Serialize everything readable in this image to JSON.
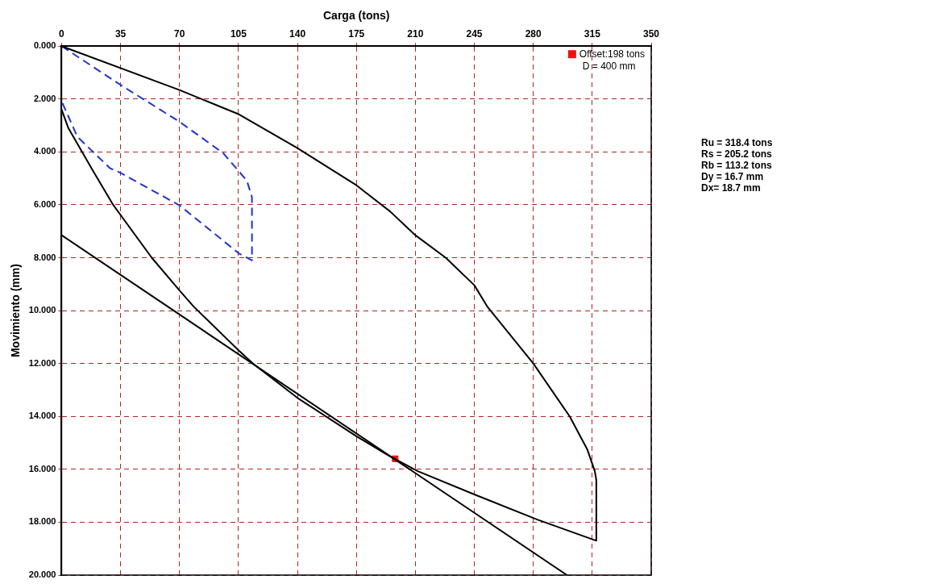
{
  "chart_data": {
    "type": "line",
    "xlabel": "Carga (tons)",
    "ylabel": "Movimiento (mm)",
    "xlim": [
      0,
      350
    ],
    "xticks": [
      0,
      35,
      70,
      105,
      140,
      175,
      210,
      245,
      280,
      315,
      350
    ],
    "ylim": [
      20,
      0
    ],
    "yticks": [
      {
        "value": 0,
        "label": "0.000"
      },
      {
        "value": 2,
        "label": "2.000"
      },
      {
        "value": 4,
        "label": "4.000"
      },
      {
        "value": 6,
        "label": "6.000"
      },
      {
        "value": 8,
        "label": "8.000"
      },
      {
        "value": 10,
        "label": "10.000"
      },
      {
        "value": 12,
        "label": "12.000"
      },
      {
        "value": 14,
        "label": "14.000"
      },
      {
        "value": 16,
        "label": "16.000"
      },
      {
        "value": 18,
        "label": "18.000"
      },
      {
        "value": 20,
        "label": "20.000"
      }
    ],
    "grid": true,
    "legend": "top right",
    "marker": "none",
    "series": [
      {
        "color": "#000000",
        "line_style": "solid",
        "x": [
          0,
          70,
          105.3,
          139.6,
          175,
          195,
          210,
          228,
          245,
          252.6,
          280,
          301.6,
          312,
          316.5,
          317.4,
          317.4,
          282.3,
          245,
          211.4,
          194.6,
          175,
          140,
          113.6,
          105,
          78.3,
          70,
          53.5,
          30.6,
          18.2,
          4,
          0
        ],
        "values": [
          0,
          1.66,
          2.58,
          3.84,
          5.26,
          6.25,
          7.15,
          8.0,
          9.04,
          9.84,
          12,
          14,
          15.24,
          16.07,
          16.4,
          18.7,
          17.9,
          16.95,
          16.07,
          15.5,
          14.75,
          13.3,
          12,
          11.5,
          9.84,
          9.24,
          8.0,
          6.0,
          4.67,
          3.1,
          2.4
        ]
      },
      {
        "color": "#2233cc",
        "line_style": "dashed",
        "x": [
          0,
          34.6,
          70,
          96,
          110,
          113,
          113,
          105.3,
          70,
          34.6,
          28.8,
          9.4,
          0
        ],
        "values": [
          0,
          1.45,
          2.86,
          4.05,
          5.09,
          5.71,
          8.1,
          7.84,
          6.02,
          4.78,
          4.62,
          3.43,
          2.08
        ]
      },
      {
        "color": "#000000",
        "line_style": "solid",
        "x": [
          0,
          300
        ],
        "values": [
          7.15,
          20
        ]
      },
      {
        "type": "scatter",
        "name": "Offset:198 tons",
        "color": "#ee1111",
        "marker": "square",
        "x": [
          198
        ],
        "values": [
          15.6
        ]
      }
    ],
    "annotations": [
      "D = 400 mm",
      "Ru = 318.4 tons",
      "Rs = 205.2 tons",
      "Rb = 113.2 tons",
      "Dy = 16.7 mm",
      "Dx= 18.7 mm"
    ]
  }
}
